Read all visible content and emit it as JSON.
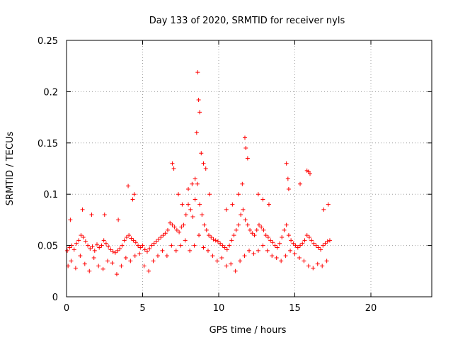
{
  "chart_data": {
    "type": "scatter",
    "title": "Day 133 of 2020, SRMTID for receiver nyls",
    "xlabel": "GPS time / hours",
    "ylabel": "SRMTID / TECUs",
    "xlim": [
      0,
      24
    ],
    "ylim": [
      0,
      0.25
    ],
    "xticks": [
      0,
      5,
      10,
      15,
      20
    ],
    "yticks": [
      0,
      0.05,
      0.1,
      0.15,
      0.2,
      0.25
    ],
    "xtick_labels": [
      "0",
      "5",
      "10",
      "15",
      "20"
    ],
    "ytick_labels": [
      "0",
      "0.05",
      "0.1",
      "0.15",
      "0.2",
      "0.25"
    ],
    "grid": true,
    "marker": "plus",
    "colors": {
      "points": "#ff0000",
      "grid": "#a0a0a0",
      "axes": "#000000"
    },
    "series": [
      {
        "x": [
          0.05,
          0.2,
          0.35,
          0.5,
          0.65,
          0.8,
          0.95,
          1.1,
          1.25,
          1.4,
          1.55,
          1.7,
          1.85,
          2.0,
          2.15,
          2.3,
          2.45,
          2.6,
          2.75,
          2.9,
          3.05,
          3.2,
          3.35,
          3.5,
          3.65,
          3.8,
          3.95,
          4.1,
          4.25,
          4.4,
          4.55,
          4.7,
          4.85,
          5.0,
          5.15,
          5.3,
          5.45,
          5.6,
          5.75,
          5.9,
          6.05,
          6.2,
          6.35,
          6.5,
          6.65,
          6.8,
          6.95,
          7.1,
          7.25,
          7.4,
          7.55,
          7.7,
          7.85,
          8.0,
          8.15,
          8.3,
          8.45,
          8.6,
          8.75,
          8.9,
          9.05,
          9.2,
          9.35,
          9.5,
          9.65,
          9.8,
          9.95,
          10.1,
          10.25,
          10.4,
          10.55,
          10.7,
          10.85,
          11.0,
          11.15,
          11.3,
          11.45,
          11.6,
          11.75,
          11.9,
          12.05,
          12.2,
          12.35,
          12.5,
          12.65,
          12.8,
          12.95,
          13.1,
          13.25,
          13.4,
          13.55,
          13.7,
          13.85,
          14.0,
          14.15,
          14.3,
          14.45,
          14.6,
          14.75,
          14.9,
          15.05,
          15.2,
          15.35,
          15.5,
          15.65,
          15.8,
          15.95,
          16.1,
          16.25,
          16.4,
          16.55,
          16.7,
          16.85,
          17.0,
          17.15,
          17.3
        ],
        "y": [
          0.045,
          0.048,
          0.05,
          0.046,
          0.052,
          0.055,
          0.06,
          0.058,
          0.054,
          0.05,
          0.047,
          0.049,
          0.045,
          0.051,
          0.048,
          0.05,
          0.055,
          0.052,
          0.049,
          0.046,
          0.044,
          0.043,
          0.045,
          0.047,
          0.05,
          0.055,
          0.058,
          0.06,
          0.057,
          0.055,
          0.053,
          0.05,
          0.048,
          0.05,
          0.046,
          0.044,
          0.047,
          0.05,
          0.052,
          0.054,
          0.056,
          0.058,
          0.06,
          0.062,
          0.065,
          0.072,
          0.07,
          0.068,
          0.065,
          0.063,
          0.068,
          0.07,
          0.08,
          0.09,
          0.085,
          0.078,
          0.095,
          0.11,
          0.09,
          0.08,
          0.07,
          0.065,
          0.06,
          0.058,
          0.056,
          0.055,
          0.054,
          0.052,
          0.05,
          0.048,
          0.046,
          0.05,
          0.055,
          0.06,
          0.065,
          0.07,
          0.08,
          0.085,
          0.075,
          0.07,
          0.065,
          0.062,
          0.06,
          0.065,
          0.07,
          0.068,
          0.065,
          0.06,
          0.058,
          0.055,
          0.053,
          0.05,
          0.048,
          0.052,
          0.058,
          0.065,
          0.07,
          0.06,
          0.055,
          0.052,
          0.05,
          0.048,
          0.05,
          0.052,
          0.055,
          0.06,
          0.058,
          0.055,
          0.052,
          0.05,
          0.048,
          0.046,
          0.05,
          0.052,
          0.054,
          0.055
        ]
      },
      {
        "x": [
          0.1,
          0.3,
          0.6,
          0.9,
          1.2,
          1.5,
          1.8,
          2.1,
          2.4,
          2.7,
          3.0,
          3.3,
          3.6,
          3.9,
          4.2,
          4.5,
          4.8,
          5.1,
          5.4,
          5.7,
          6.0,
          6.3,
          6.6,
          6.9,
          7.2,
          7.5,
          7.8,
          8.1,
          8.4,
          8.7,
          9.0,
          9.3,
          9.6,
          9.9,
          10.2,
          10.5,
          10.8,
          11.1,
          11.4,
          11.7,
          12.0,
          12.3,
          12.6,
          12.9,
          13.2,
          13.5,
          13.8,
          14.1,
          14.4,
          14.7,
          15.0,
          15.3,
          15.6,
          15.9,
          16.2,
          16.5,
          16.8,
          17.1
        ],
        "y": [
          0.03,
          0.035,
          0.028,
          0.04,
          0.032,
          0.025,
          0.038,
          0.03,
          0.027,
          0.035,
          0.033,
          0.022,
          0.03,
          0.038,
          0.035,
          0.04,
          0.042,
          0.03,
          0.025,
          0.035,
          0.04,
          0.045,
          0.04,
          0.05,
          0.045,
          0.05,
          0.055,
          0.045,
          0.05,
          0.06,
          0.048,
          0.045,
          0.04,
          0.035,
          0.038,
          0.03,
          0.032,
          0.025,
          0.035,
          0.04,
          0.045,
          0.042,
          0.045,
          0.05,
          0.045,
          0.04,
          0.038,
          0.035,
          0.04,
          0.045,
          0.042,
          0.038,
          0.035,
          0.03,
          0.028,
          0.032,
          0.03,
          0.035
        ]
      },
      {
        "x": [
          0.25,
          1.05,
          1.65,
          2.5,
          3.4,
          4.05,
          4.35,
          4.45,
          6.95,
          7.05,
          7.35,
          7.6,
          8.0,
          8.25,
          8.45,
          8.55,
          8.62,
          8.68,
          8.75,
          8.85,
          9.0,
          9.15,
          9.4,
          10.5,
          10.9,
          11.3,
          11.55,
          11.72,
          11.78,
          11.9,
          12.6,
          12.9,
          13.3,
          14.45,
          14.55,
          14.6,
          15.35,
          15.8,
          15.9,
          16.0,
          16.9,
          17.2
        ],
        "y": [
          0.075,
          0.085,
          0.08,
          0.08,
          0.075,
          0.108,
          0.095,
          0.1,
          0.13,
          0.125,
          0.1,
          0.09,
          0.105,
          0.11,
          0.115,
          0.16,
          0.2188,
          0.192,
          0.18,
          0.14,
          0.13,
          0.125,
          0.1,
          0.085,
          0.09,
          0.1,
          0.11,
          0.155,
          0.145,
          0.135,
          0.1,
          0.095,
          0.09,
          0.13,
          0.115,
          0.105,
          0.11,
          0.123,
          0.122,
          0.12,
          0.085,
          0.09
        ]
      }
    ]
  }
}
